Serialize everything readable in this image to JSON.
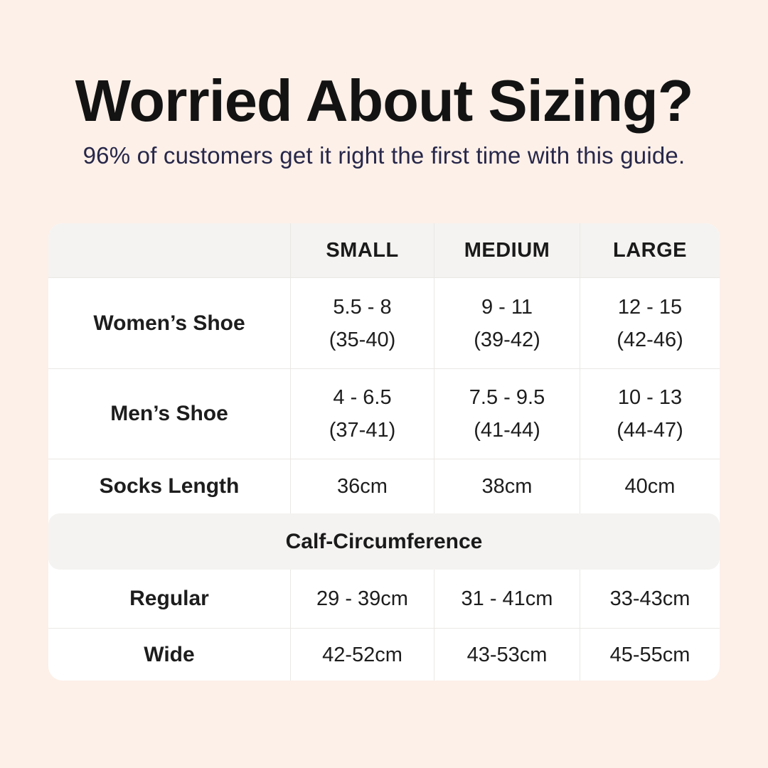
{
  "page": {
    "title": "Worried About Sizing?",
    "subtitle": "96% of customers get it right the first time with this guide."
  },
  "colors": {
    "background": "#fdf0e8",
    "card": "#ffffff",
    "band": "#f4f3f1",
    "divider": "#eae8e5",
    "title_text": "#131313",
    "subtitle_text": "#27274a",
    "table_text": "#1d1d1d"
  },
  "chart_data": {
    "type": "table",
    "columns": [
      "",
      "SMALL",
      "MEDIUM",
      "LARGE"
    ],
    "rows": [
      {
        "label": "Women’s Shoe",
        "small": [
          "5.5 - 8",
          "(35-40)"
        ],
        "medium": [
          "9 - 11",
          "(39-42)"
        ],
        "large": [
          "12 - 15",
          "(42-46)"
        ]
      },
      {
        "label": "Men’s Shoe",
        "small": [
          "4 - 6.5",
          "(37-41)"
        ],
        "medium": [
          "7.5 - 9.5",
          "(41-44)"
        ],
        "large": [
          "10 - 13",
          "(44-47)"
        ]
      },
      {
        "label": "Socks Length",
        "small": [
          "36cm"
        ],
        "medium": [
          "38cm"
        ],
        "large": [
          "40cm"
        ]
      }
    ],
    "section": {
      "label": "Calf-Circumference",
      "rows": [
        {
          "label": "Regular",
          "small": [
            "29 - 39cm"
          ],
          "medium": [
            "31 - 41cm"
          ],
          "large": [
            "33-43cm"
          ]
        },
        {
          "label": "Wide",
          "small": [
            "42-52cm"
          ],
          "medium": [
            "43-53cm"
          ],
          "large": [
            "45-55cm"
          ]
        }
      ]
    }
  }
}
